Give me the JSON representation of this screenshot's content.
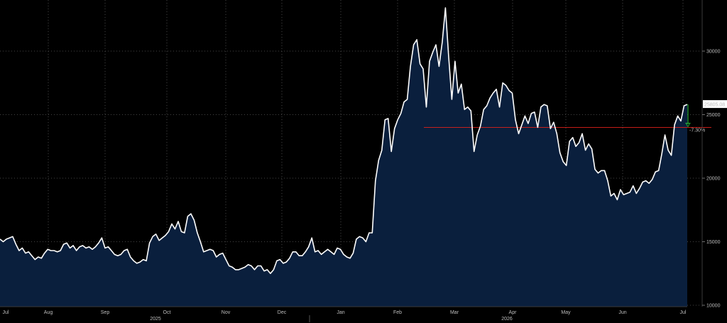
{
  "chart_data": {
    "type": "area",
    "title": "",
    "xlabel": "",
    "ylabel": "",
    "ylim": [
      10000,
      34000
    ],
    "grid": true,
    "x_ticks": [
      "Jul",
      "Aug",
      "Sep",
      "Oct",
      "Nov",
      "Dec",
      "Jan",
      "Feb",
      "Mar",
      "Apr",
      "May",
      "Jun",
      "Jul"
    ],
    "year_labels": [
      "2025",
      "2026"
    ],
    "y_ticks": [
      10000,
      15000,
      20000,
      25000,
      30000
    ],
    "y_tick_labels": [
      "10000",
      "15000",
      "20000",
      "25000",
      "30000"
    ],
    "last_value": 25805.08,
    "last_value_label": "25805.08",
    "reference_level": 24000,
    "change_label": "-7.30%",
    "colors": {
      "line": "#ffffff",
      "fill": "#0a1f3d",
      "reference": "#e0201a",
      "change": "#2ecc40",
      "badge_bg": "#ffffff",
      "badge_text": "#000000"
    },
    "series": [
      {
        "values": [
          15200,
          15000,
          15200,
          15300,
          15400,
          14800,
          14300,
          14500,
          14100,
          14200,
          13900,
          13600,
          13800,
          13700,
          14100,
          14400,
          14300,
          14300,
          14200,
          14300,
          14800,
          14900,
          14500,
          14700,
          14300,
          14600,
          14700,
          14500,
          14600,
          14400,
          14600,
          14900,
          15300,
          14500,
          14600,
          14300,
          14000,
          13900,
          14000,
          14300,
          14400,
          13800,
          13500,
          13300,
          13400,
          13600,
          13500,
          14900,
          15400,
          15600,
          15100,
          15300,
          15500,
          15800,
          16400,
          16000,
          16600,
          15800,
          15700,
          17000,
          17200,
          16700,
          15700,
          15000,
          14200,
          14300,
          14400,
          14300,
          13800,
          14000,
          14100,
          13600,
          13100,
          13000,
          12800,
          12800,
          12900,
          13000,
          13200,
          13100,
          12800,
          13100,
          13100,
          12700,
          12800,
          12500,
          12800,
          13500,
          13600,
          13300,
          13400,
          13700,
          14200,
          14200,
          13900,
          13900,
          14200,
          14600,
          15300,
          14200,
          14300,
          14000,
          14200,
          14400,
          14200,
          14000,
          14500,
          14400,
          14000,
          13800,
          13700,
          14100,
          15200,
          15400,
          15300,
          15000,
          15700,
          15700,
          19800,
          21400,
          22200,
          24600,
          24700,
          22100,
          23900,
          24600,
          25100,
          26000,
          26200,
          28800,
          30500,
          30900,
          29000,
          28600,
          25600,
          29200,
          29900,
          30500,
          28800,
          30700,
          33400,
          29600,
          26200,
          29200,
          26700,
          27400,
          25400,
          25600,
          25300,
          22100,
          23400,
          24100,
          25400,
          25700,
          26300,
          26700,
          27000,
          25600,
          27500,
          27300,
          26900,
          26700,
          24600,
          23500,
          24200,
          24900,
          24300,
          25100,
          25200,
          24000,
          25600,
          25800,
          25700,
          23900,
          24400,
          23500,
          22000,
          21300,
          21000,
          22900,
          23200,
          22500,
          22800,
          23500,
          22200,
          22700,
          22300,
          20700,
          20400,
          20600,
          20600,
          19800,
          18600,
          18800,
          18300,
          19100,
          18700,
          18800,
          18900,
          19400,
          18800,
          19200,
          19700,
          19800,
          19600,
          19900,
          20500,
          20600,
          21900,
          23400,
          22200,
          21800,
          24200,
          24900,
          24500,
          25700,
          25805.08
        ]
      }
    ]
  }
}
